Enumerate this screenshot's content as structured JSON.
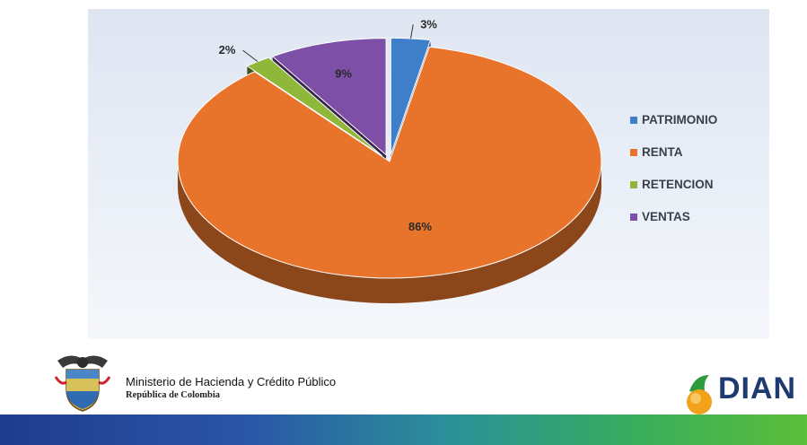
{
  "chart_data": {
    "type": "pie",
    "title": "",
    "slices": [
      {
        "label": "PATRIMONIO",
        "value": 3,
        "data_label": "3%",
        "color": "#3f7fc9"
      },
      {
        "label": "RENTA",
        "value": 86,
        "data_label": "86%",
        "color": "#e8742b"
      },
      {
        "label": "RETENCION",
        "value": 2,
        "data_label": "2%",
        "color": "#8fb83a"
      },
      {
        "label": "VENTAS",
        "value": 9,
        "data_label": "9%",
        "color": "#7d4fa6"
      }
    ],
    "legend_position": "right",
    "style": "3d-exploded"
  },
  "footer": {
    "ministry": "Ministerio de Hacienda y Crédito Público",
    "republic": "República de Colombia",
    "agency_logo_text": "DIAN"
  }
}
